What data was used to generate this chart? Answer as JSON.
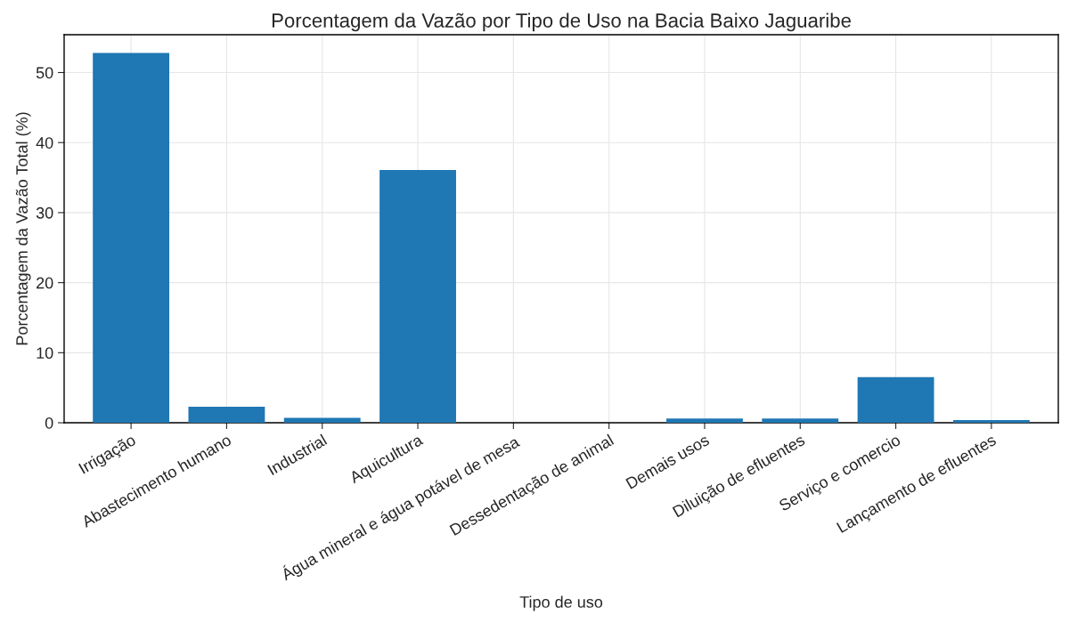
{
  "chart_data": {
    "type": "bar",
    "title": "Porcentagem da Vazão por Tipo de Uso na Bacia Baixo Jaguaribe",
    "xlabel": "Tipo de uso",
    "ylabel": "Porcentagem da Vazão Total (%)",
    "categories": [
      "Irrigação",
      "Abastecimento humano",
      "Industrial",
      "Aquicultura",
      "Água mineral e água potável de mesa",
      "Dessedentação de animal",
      "Demais usos",
      "Diluição de efluentes",
      "Serviço e comercio",
      "Lançamento de efluentes"
    ],
    "values": [
      52.8,
      2.3,
      0.7,
      36.1,
      0,
      0,
      0.6,
      0.6,
      6.5,
      0.4
    ],
    "color": "#1f77b4",
    "ylim": [
      0,
      55.4
    ],
    "yticks": [
      0,
      10,
      20,
      30,
      40,
      50
    ],
    "grid": true
  }
}
